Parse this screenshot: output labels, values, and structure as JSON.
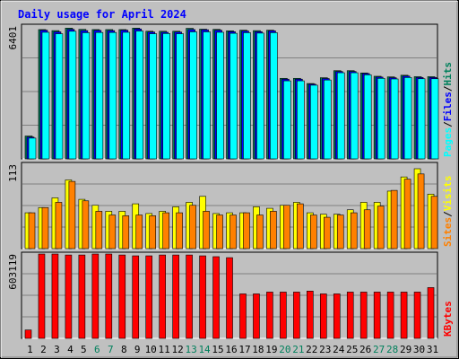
{
  "chart_data": [
    {
      "type": "bar",
      "title": "Daily usage for April 2024",
      "panel": "hits-files-pages",
      "ylabel_max": "6401",
      "legend": [
        "Pages",
        "/",
        "Files",
        "/",
        "Hits"
      ],
      "ylim": [
        0,
        6401
      ],
      "series": [
        {
          "name": "Hits",
          "color": "#00805c",
          "values": [
            1100,
            6230,
            6180,
            6300,
            6240,
            6230,
            6230,
            6230,
            6300,
            6150,
            6150,
            6150,
            6290,
            6250,
            6240,
            6170,
            6200,
            6180,
            6200,
            3880,
            3880,
            3630,
            3910,
            4250,
            4250,
            4140,
            3980,
            3950,
            4030,
            3960,
            3960
          ]
        },
        {
          "name": "Files",
          "color": "#0000ff",
          "values": [
            1050,
            6200,
            6120,
            6240,
            6180,
            6190,
            6180,
            6200,
            6260,
            6110,
            6100,
            6110,
            6230,
            6220,
            6200,
            6130,
            6160,
            6130,
            6170,
            3840,
            3840,
            3600,
            3870,
            4210,
            4210,
            4110,
            3940,
            3910,
            3990,
            3920,
            3920
          ]
        },
        {
          "name": "Pages",
          "color": "#00ffff",
          "values": [
            1000,
            6100,
            6030,
            6150,
            6080,
            6090,
            6090,
            6100,
            6160,
            6030,
            6040,
            6030,
            6120,
            6120,
            6100,
            6050,
            6080,
            6060,
            6080,
            3760,
            3760,
            3550,
            3800,
            4150,
            4150,
            4050,
            3880,
            3850,
            3920,
            3860,
            3860
          ]
        }
      ],
      "categories": [
        "1",
        "2",
        "3",
        "4",
        "5",
        "6",
        "7",
        "8",
        "9",
        "10",
        "11",
        "12",
        "13",
        "14",
        "15",
        "16",
        "17",
        "18",
        "19",
        "20",
        "21",
        "22",
        "23",
        "24",
        "25",
        "26",
        "27",
        "28",
        "29",
        "30",
        "31"
      ],
      "weekend_days": [
        "6",
        "7",
        "13",
        "14",
        "20",
        "21",
        "27",
        "28"
      ]
    },
    {
      "type": "bar",
      "panel": "visits-sites",
      "ylabel_max": "113",
      "legend": [
        "Sites",
        "/",
        "Visits"
      ],
      "ylim": [
        0,
        113
      ],
      "series": [
        {
          "name": "Visits",
          "color": "#ffff00",
          "values": [
            48,
            55,
            68,
            92,
            66,
            58,
            50,
            50,
            60,
            47,
            50,
            56,
            62,
            70,
            47,
            48,
            48,
            56,
            54,
            58,
            62,
            48,
            46,
            46,
            52,
            62,
            62,
            77,
            96,
            107,
            73
          ]
        },
        {
          "name": "Sites",
          "color": "#ff8000",
          "values": [
            48,
            55,
            62,
            90,
            64,
            50,
            45,
            44,
            45,
            44,
            48,
            48,
            58,
            50,
            45,
            45,
            48,
            45,
            50,
            58,
            60,
            45,
            42,
            45,
            48,
            52,
            57,
            78,
            93,
            100,
            70
          ]
        }
      ],
      "categories": [
        "1",
        "2",
        "3",
        "4",
        "5",
        "6",
        "7",
        "8",
        "9",
        "10",
        "11",
        "12",
        "13",
        "14",
        "15",
        "16",
        "17",
        "18",
        "19",
        "20",
        "21",
        "22",
        "23",
        "24",
        "25",
        "26",
        "27",
        "28",
        "29",
        "30",
        "31"
      ]
    },
    {
      "type": "bar",
      "panel": "kbytes",
      "ylabel_max": "603119",
      "legend": [
        "KBytes"
      ],
      "ylim": [
        0,
        603119
      ],
      "series": [
        {
          "name": "KBytes",
          "color": "#ff0000",
          "values": [
            60000,
            603000,
            603000,
            596000,
            596000,
            603000,
            603000,
            596000,
            590000,
            590000,
            596000,
            596000,
            596000,
            590000,
            584000,
            577000,
            318000,
            318000,
            331000,
            331000,
            331000,
            338000,
            318000,
            318000,
            331000,
            331000,
            331000,
            331000,
            331000,
            331000,
            363000
          ]
        }
      ],
      "categories": [
        "1",
        "2",
        "3",
        "4",
        "5",
        "6",
        "7",
        "8",
        "9",
        "10",
        "11",
        "12",
        "13",
        "14",
        "15",
        "16",
        "17",
        "18",
        "19",
        "20",
        "21",
        "22",
        "23",
        "24",
        "25",
        "26",
        "27",
        "28",
        "29",
        "30",
        "31"
      ]
    }
  ],
  "colors": {
    "background": "#c0c0c0",
    "title": "#0000ff",
    "weekday_label": "#000000",
    "weekend_label": "#00805c",
    "separator": "#808080"
  }
}
